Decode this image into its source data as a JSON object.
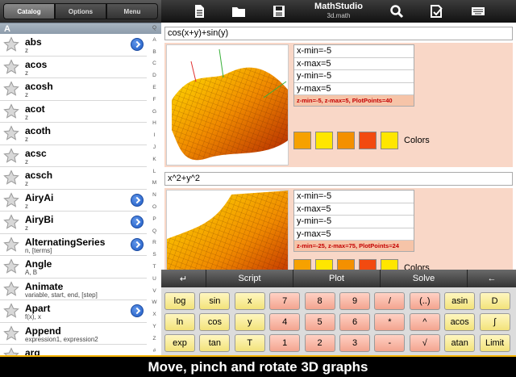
{
  "sidebar": {
    "tabs": [
      "Catalog",
      "Options",
      "Menu"
    ],
    "section": "A",
    "index_letters": [
      "Q",
      "A",
      "B",
      "C",
      "D",
      "E",
      "F",
      "G",
      "H",
      "I",
      "J",
      "K",
      "L",
      "M",
      "N",
      "O",
      "P",
      "Q",
      "R",
      "S",
      "T",
      "U",
      "V",
      "W",
      "X",
      "Y",
      "Z",
      "#"
    ],
    "items": [
      {
        "name": "abs",
        "args": "z"
      },
      {
        "name": "acos",
        "args": "z"
      },
      {
        "name": "acosh",
        "args": "z"
      },
      {
        "name": "acot",
        "args": "z"
      },
      {
        "name": "acoth",
        "args": "z"
      },
      {
        "name": "acsc",
        "args": "z"
      },
      {
        "name": "acsch",
        "args": "z"
      },
      {
        "name": "AiryAi",
        "args": "z"
      },
      {
        "name": "AiryBi",
        "args": "z"
      },
      {
        "name": "AlternatingSeries",
        "args": "n, [terms]"
      },
      {
        "name": "Angle",
        "args": "A, B"
      },
      {
        "name": "Animate",
        "args": "variable, start, end, [step]"
      },
      {
        "name": "Apart",
        "args": "f(x), x"
      },
      {
        "name": "Append",
        "args": "expression1, expression2"
      },
      {
        "name": "arg",
        "args": ""
      }
    ]
  },
  "header": {
    "title": "MathStudio",
    "subtitle": "3d.math",
    "icons": [
      "document-icon",
      "folder-icon",
      "save-icon",
      "search-icon",
      "checklist-icon",
      "keyboard-icon"
    ]
  },
  "entries": [
    {
      "input": "cos(x+y)+sin(y)",
      "params": [
        "x-min=-5",
        "x-max=5",
        "y-min=-5",
        "y-max=5"
      ],
      "note": "z-min=-5, z-max=5, PlotPoints=40",
      "colors": [
        "#f6a100",
        "#ffe600",
        "#f49000",
        "#f24a10",
        "#ffe600"
      ],
      "colors_label": "Colors"
    },
    {
      "input": "x^2+y^2",
      "params": [
        "x-min=-5",
        "x-max=5",
        "y-min=-5",
        "y-max=5"
      ],
      "note": "z-min=-25, z-max=75, PlotPoints=24",
      "colors": [
        "#f6a100",
        "#ffe600",
        "#f49000",
        "#f24a10",
        "#ffe600"
      ],
      "colors_label": "Colors"
    }
  ],
  "keypad": {
    "top": [
      "↵",
      "Script",
      "Plot",
      "Solve",
      "←"
    ],
    "rows": [
      [
        "log",
        "sin",
        "x",
        "7",
        "8",
        "9",
        "/",
        "(..)",
        "asin",
        "D"
      ],
      [
        "ln",
        "cos",
        "y",
        "4",
        "5",
        "6",
        "*",
        "^",
        "acos",
        "∫"
      ],
      [
        "exp",
        "tan",
        "T",
        "1",
        "2",
        "3",
        "-",
        "√",
        "atan",
        "Limit"
      ]
    ]
  },
  "caption": "Move, pinch and rotate 3D graphs"
}
